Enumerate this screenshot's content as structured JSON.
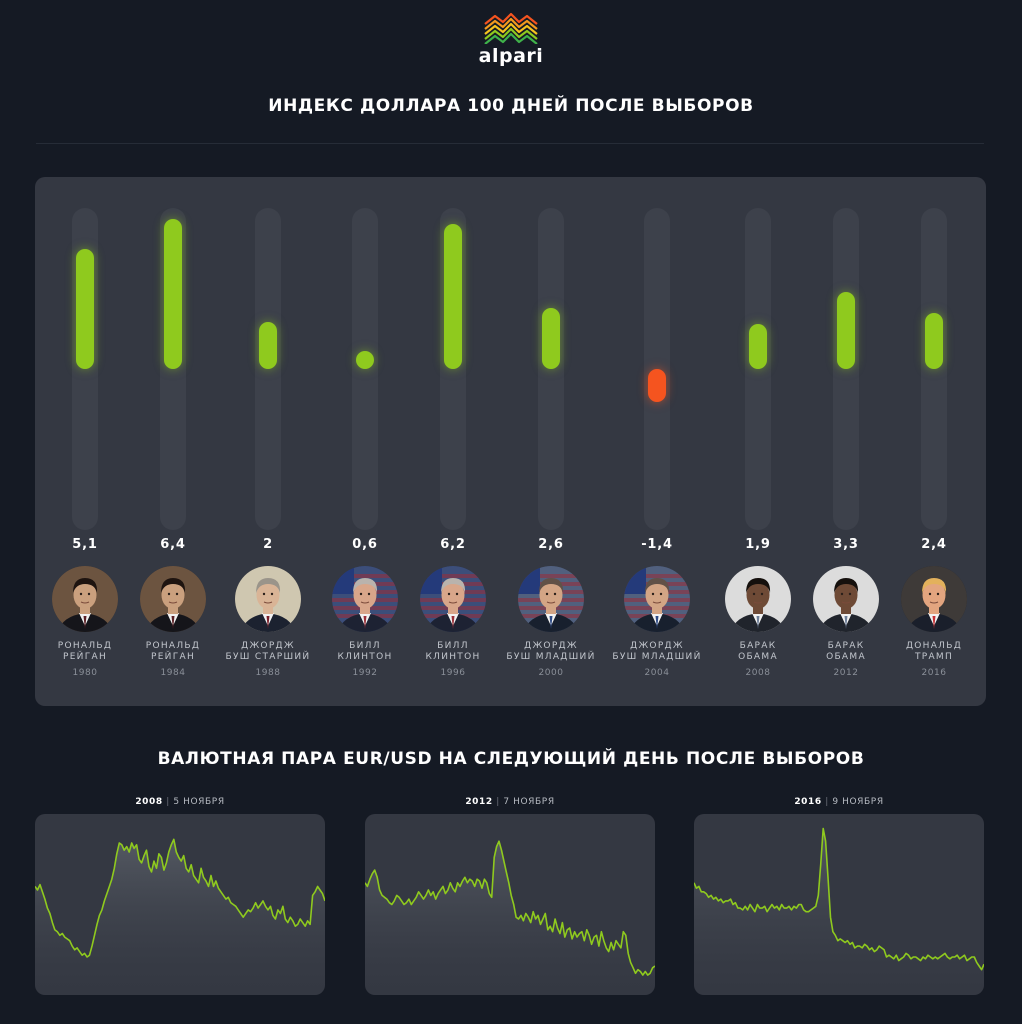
{
  "logo": {
    "text": "alpari"
  },
  "title": "ИНДЕКС ДОЛЛАРА 100 ДНЕЙ ПОСЛЕ ВЫБОРОВ",
  "colors": {
    "positive": "#8fca1e",
    "negative": "#f5541f",
    "track": "#3d414b",
    "panel": "#343842",
    "background": "#151a24"
  },
  "chart_data": [
    {
      "type": "bar",
      "title": "ИНДЕКС ДОЛЛАРА 100 ДНЕЙ ПОСЛЕ ВЫБОРОВ",
      "categories": [
        "1980",
        "1984",
        "1988",
        "1992",
        "1996",
        "2000",
        "2004",
        "2008",
        "2012",
        "2016"
      ],
      "values": [
        5.1,
        6.4,
        2,
        0.6,
        6.2,
        2.6,
        -1.4,
        1.9,
        3.3,
        2.4
      ],
      "ylim": [
        -6.4,
        6.4
      ],
      "items": [
        {
          "value": 5.1,
          "label": "5,1",
          "name_line1": "РОНАЛЬД",
          "name_line2": "РЕЙГАН",
          "year": "1980",
          "portrait": "reagan-portrait"
        },
        {
          "value": 6.4,
          "label": "6,4",
          "name_line1": "РОНАЛЬД",
          "name_line2": "РЕЙГАН",
          "year": "1984",
          "portrait": "reagan-portrait"
        },
        {
          "value": 2,
          "label": "2",
          "name_line1": "ДЖОРДЖ",
          "name_line2": "БУШ СТАРШИЙ",
          "year": "1988",
          "portrait": "bush-sr-portrait"
        },
        {
          "value": 0.6,
          "label": "0,6",
          "name_line1": "БИЛЛ",
          "name_line2": "КЛИНТОН",
          "year": "1992",
          "portrait": "clinton-portrait"
        },
        {
          "value": 6.2,
          "label": "6,2",
          "name_line1": "БИЛЛ",
          "name_line2": "КЛИНТОН",
          "year": "1996",
          "portrait": "clinton-portrait"
        },
        {
          "value": 2.6,
          "label": "2,6",
          "name_line1": "ДЖОРДЖ",
          "name_line2": "БУШ МЛАДШИЙ",
          "year": "2000",
          "portrait": "bush-jr-portrait"
        },
        {
          "value": -1.4,
          "label": "-1,4",
          "name_line1": "ДЖОРДЖ",
          "name_line2": "БУШ МЛАДШИЙ",
          "year": "2004",
          "portrait": "bush-jr-portrait"
        },
        {
          "value": 1.9,
          "label": "1,9",
          "name_line1": "БАРАК",
          "name_line2": "ОБАМА",
          "year": "2008",
          "portrait": "obama-portrait"
        },
        {
          "value": 3.3,
          "label": "3,3",
          "name_line1": "БАРАК",
          "name_line2": "ОБАМА",
          "year": "2012",
          "portrait": "obama-portrait"
        },
        {
          "value": 2.4,
          "label": "2,4",
          "name_line1": "ДОНАЛЬД",
          "name_line2": "ТРАМП",
          "year": "2016",
          "portrait": "trump-portrait"
        }
      ]
    },
    {
      "type": "line",
      "title": "ВАЛЮТНАЯ ПАРА EUR/USD НА СЛЕДУЮЩИЙ ДЕНЬ ПОСЛЕ ВЫБОРОВ",
      "ylim": [
        0,
        100
      ],
      "charts": [
        {
          "year": "2008",
          "date": "5 НОЯБРЯ",
          "values": [
            60,
            58,
            61,
            57,
            53,
            48,
            45,
            40,
            36,
            35,
            33,
            34,
            32,
            31,
            30,
            27,
            25,
            26,
            24,
            22,
            23,
            21,
            22,
            27,
            33,
            39,
            44,
            47,
            52,
            56,
            60,
            64,
            70,
            78,
            84,
            83,
            80,
            82,
            79,
            84,
            81,
            83,
            75,
            73,
            77,
            80,
            71,
            68,
            74,
            70,
            78,
            76,
            69,
            73,
            79,
            83,
            86,
            79,
            76,
            74,
            77,
            70,
            68,
            72,
            66,
            64,
            62,
            70,
            65,
            63,
            60,
            66,
            60,
            63,
            59,
            57,
            55,
            53,
            54,
            51,
            50,
            49,
            47,
            45,
            43,
            45,
            47,
            46,
            48,
            51,
            48,
            50,
            52,
            49,
            47,
            49,
            44,
            42,
            47,
            45,
            49,
            42,
            40,
            43,
            41,
            38,
            39,
            42,
            40,
            38,
            41,
            39,
            55,
            57,
            60,
            58,
            56,
            52
          ]
        },
        {
          "year": "2012",
          "date": "7 НОЯБРЯ",
          "values": [
            62,
            60,
            64,
            67,
            69,
            65,
            58,
            55,
            54,
            53,
            51,
            50,
            52,
            55,
            54,
            52,
            50,
            51,
            53,
            50,
            52,
            54,
            57,
            55,
            53,
            55,
            58,
            55,
            57,
            53,
            56,
            58,
            60,
            56,
            58,
            62,
            59,
            57,
            62,
            60,
            63,
            65,
            62,
            64,
            63,
            60,
            64,
            63,
            59,
            64,
            62,
            56,
            54,
            76,
            82,
            85,
            80,
            74,
            68,
            62,
            55,
            50,
            43,
            42,
            44,
            41,
            45,
            43,
            40,
            46,
            42,
            44,
            39,
            42,
            45,
            36,
            38,
            35,
            42,
            37,
            34,
            40,
            32,
            36,
            37,
            31,
            35,
            32,
            34,
            35,
            30,
            36,
            33,
            28,
            32,
            33,
            27,
            35,
            30,
            26,
            24,
            29,
            25,
            30,
            28,
            26,
            35,
            33,
            23,
            18,
            15,
            12,
            14,
            13,
            11,
            13,
            11,
            12,
            15,
            16
          ]
        },
        {
          "year": "2016",
          "date": "9 НОЯБРЯ",
          "values": [
            62,
            59,
            60,
            57,
            57,
            56,
            54,
            55,
            53,
            54,
            52,
            53,
            51,
            52,
            52,
            53,
            50,
            51,
            48,
            48,
            47,
            49,
            47,
            50,
            48,
            46,
            50,
            48,
            48,
            49,
            46,
            48,
            50,
            48,
            49,
            47,
            50,
            48,
            48,
            49,
            47,
            49,
            48,
            50,
            50,
            47,
            46,
            46,
            47,
            48,
            49,
            55,
            72,
            92,
            85,
            65,
            43,
            35,
            33,
            30,
            31,
            30,
            29,
            30,
            28,
            29,
            26,
            27,
            27,
            26,
            28,
            27,
            25,
            26,
            24,
            25,
            27,
            26,
            25,
            21,
            22,
            21,
            20,
            22,
            19,
            20,
            21,
            23,
            22,
            20,
            21,
            21,
            20,
            19,
            21,
            20,
            22,
            21,
            20,
            21,
            20,
            21,
            22,
            23,
            21,
            20,
            21,
            21,
            22,
            20,
            21,
            22,
            19,
            20,
            21,
            21,
            18,
            16,
            14,
            17
          ]
        }
      ]
    }
  ]
}
